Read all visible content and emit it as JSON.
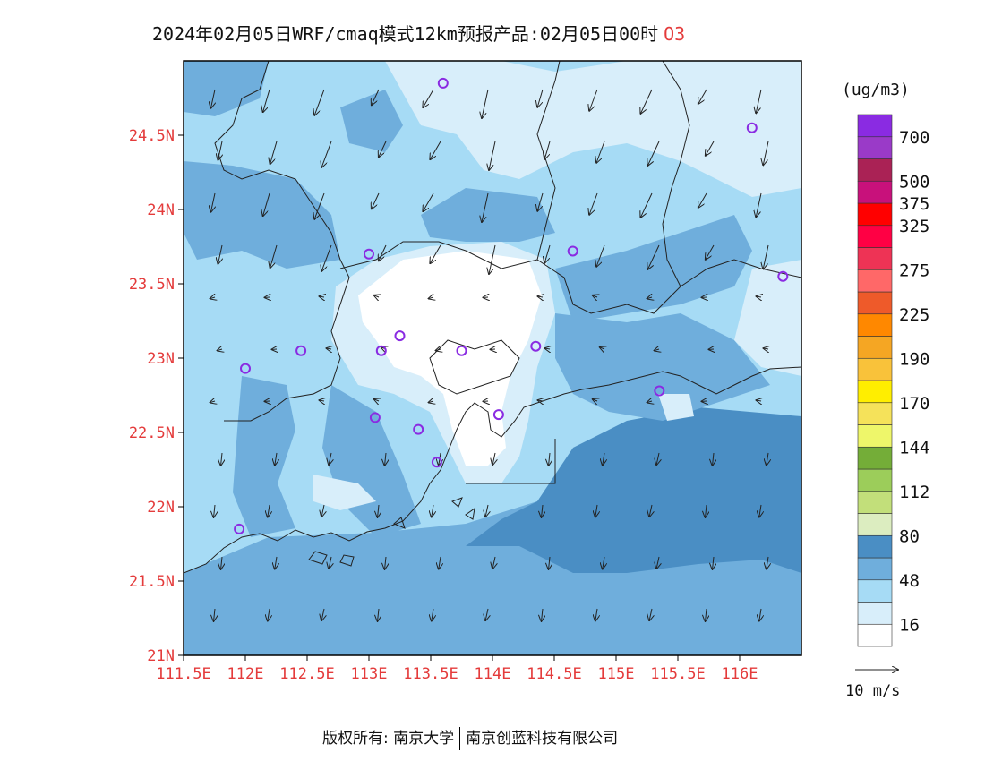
{
  "title": {
    "text": "2024年02月05日WRF/cmaq模式12km预报产品:02月05日00时",
    "pollutant": "O3"
  },
  "map": {
    "lat_ticks": [
      {
        "value": 21.0,
        "label": "21N"
      },
      {
        "value": 21.5,
        "label": "21.5N"
      },
      {
        "value": 22.0,
        "label": "22N"
      },
      {
        "value": 22.5,
        "label": "22.5N"
      },
      {
        "value": 23.0,
        "label": "23N"
      },
      {
        "value": 23.5,
        "label": "23.5N"
      },
      {
        "value": 24.0,
        "label": "24N"
      },
      {
        "value": 24.5,
        "label": "24.5N"
      }
    ],
    "lon_ticks": [
      {
        "value": 111.5,
        "label": "111.5E"
      },
      {
        "value": 112.0,
        "label": "112E"
      },
      {
        "value": 112.5,
        "label": "112.5E"
      },
      {
        "value": 113.0,
        "label": "113E"
      },
      {
        "value": 113.5,
        "label": "113.5E"
      },
      {
        "value": 114.0,
        "label": "114E"
      },
      {
        "value": 114.5,
        "label": "114.5E"
      },
      {
        "value": 115.0,
        "label": "115E"
      },
      {
        "value": 115.5,
        "label": "115.5E"
      },
      {
        "value": 116.0,
        "label": "116E"
      }
    ],
    "extent": {
      "lon_min": 111.5,
      "lon_max": 116.5,
      "lat_min": 21.0,
      "lat_max": 25.0
    },
    "station_color": "#8a2be2",
    "stations": [
      {
        "lon": 113.6,
        "lat": 24.85
      },
      {
        "lon": 116.1,
        "lat": 24.55
      },
      {
        "lon": 113.0,
        "lat": 23.7
      },
      {
        "lon": 114.65,
        "lat": 23.72
      },
      {
        "lon": 116.35,
        "lat": 23.55
      },
      {
        "lon": 113.25,
        "lat": 23.15
      },
      {
        "lon": 113.1,
        "lat": 23.05
      },
      {
        "lon": 113.75,
        "lat": 23.05
      },
      {
        "lon": 112.45,
        "lat": 23.05
      },
      {
        "lon": 112.0,
        "lat": 22.93
      },
      {
        "lon": 114.35,
        "lat": 23.08
      },
      {
        "lon": 115.35,
        "lat": 22.78
      },
      {
        "lon": 113.05,
        "lat": 22.6
      },
      {
        "lon": 114.05,
        "lat": 22.62
      },
      {
        "lon": 113.4,
        "lat": 22.52
      },
      {
        "lon": 113.55,
        "lat": 22.3
      },
      {
        "lon": 111.95,
        "lat": 21.85
      }
    ]
  },
  "legend": {
    "unit": "(ug/m3)",
    "colors": [
      "#ffffff",
      "#d8eefa",
      "#a6dbf5",
      "#6faedc",
      "#4a8ec4",
      "#dcedc0",
      "#c2df7a",
      "#9ccd5a",
      "#74ad38",
      "#eef66a",
      "#f5e25a",
      "#ffee00",
      "#f9c23a",
      "#f5a623",
      "#ff8800",
      "#ee5a2a",
      "#ff6868",
      "#ee3355",
      "#ff0044",
      "#ff0000",
      "#c8117b",
      "#aa2255",
      "#9a3ac8",
      "#8a2be2"
    ],
    "labels": [
      {
        "index": 0,
        "text": "16"
      },
      {
        "index": 2,
        "text": "48"
      },
      {
        "index": 4,
        "text": "80"
      },
      {
        "index": 6,
        "text": "112"
      },
      {
        "index": 8,
        "text": "144"
      },
      {
        "index": 10,
        "text": "170"
      },
      {
        "index": 12,
        "text": "190"
      },
      {
        "index": 14,
        "text": "225"
      },
      {
        "index": 16,
        "text": "275"
      },
      {
        "index": 18,
        "text": "325"
      },
      {
        "index": 19,
        "text": "375"
      },
      {
        "index": 20,
        "text": "500"
      },
      {
        "index": 22,
        "text": "700"
      }
    ]
  },
  "wind_reference": {
    "label": "10 m/s"
  },
  "footer": {
    "left": "版权所有: 南京大学",
    "right": "南京创蓝科技有限公司"
  }
}
